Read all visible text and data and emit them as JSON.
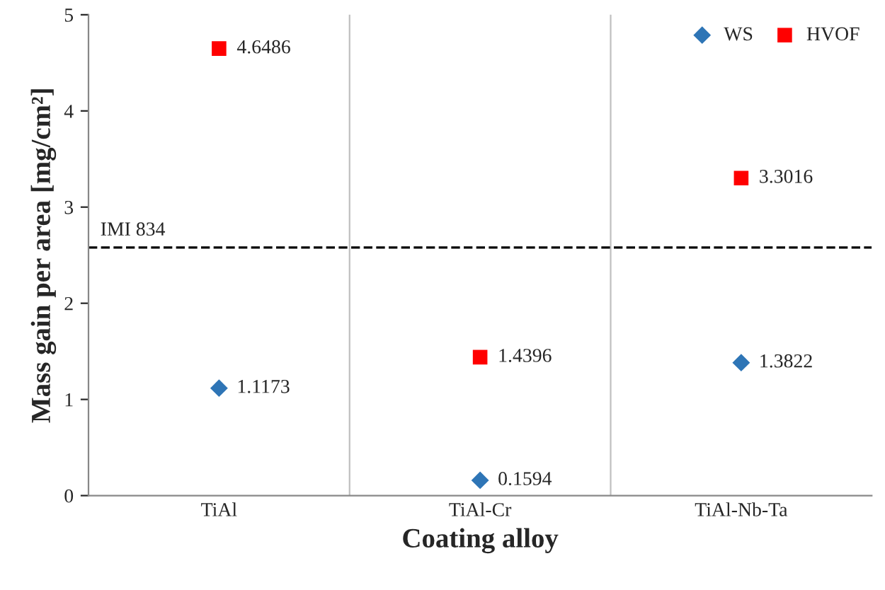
{
  "chart_data": {
    "type": "scatter",
    "xlabel": "Coating alloy",
    "ylabel": "Mass gain per area [mg/cm²]",
    "categories": [
      "TiAl",
      "TiAl-Cr",
      "TiAl-Nb-Ta"
    ],
    "series": [
      {
        "name": "WS",
        "color": "#2e75b6",
        "marker": "diamond",
        "values": [
          1.1173,
          0.1594,
          1.3822
        ]
      },
      {
        "name": "HVOF",
        "color": "#ff0000",
        "marker": "square",
        "values": [
          4.6486,
          1.4396,
          3.3016
        ]
      }
    ],
    "ylim": [
      0,
      5
    ],
    "yticks": [
      0,
      1,
      2,
      3,
      4,
      5
    ],
    "ref_lines": [
      {
        "axis": "y",
        "value": 2.58,
        "label": "IMI 834",
        "color": "#000000",
        "line_style": "dashed"
      }
    ],
    "data_labels": true,
    "grid": "x",
    "legend": "top right"
  }
}
